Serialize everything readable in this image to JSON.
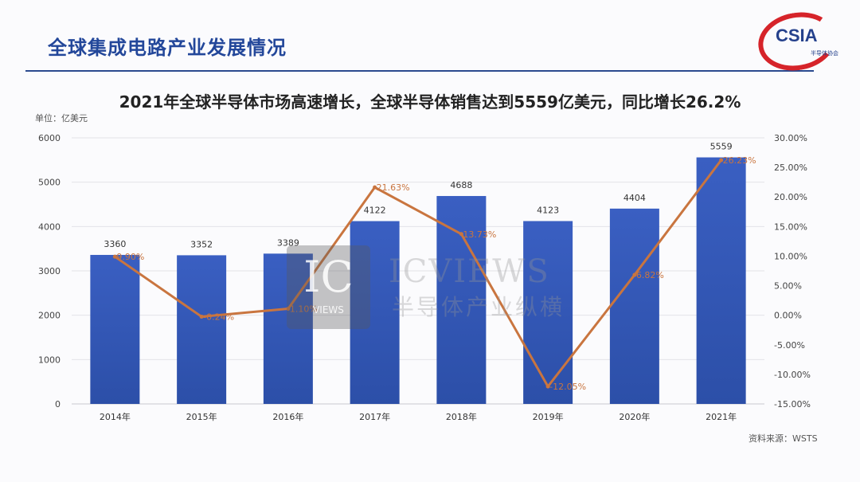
{
  "header": {
    "title": "全球集成电路产业发展情况"
  },
  "logo": {
    "text": "CSIA",
    "sub": "半导体协会"
  },
  "watermark": {
    "mark": "IC",
    "mark_sub": "VIEWS",
    "name": "ICVIEWS",
    "name_cn": "半导体产业纵横"
  },
  "source": "资料来源：WSTS",
  "colors": {
    "bar": "#3d63c4",
    "line": "#c9753f",
    "title": "#23479a"
  },
  "chart_data": {
    "type": "bar",
    "title": "2021年全球半导体市场高速增长，全球半导体销售达到5559亿美元，同比增长26.2%",
    "unit_label": "单位：亿美元",
    "categories": [
      "2014年",
      "2015年",
      "2016年",
      "2017年",
      "2018年",
      "2019年",
      "2020年",
      "2021年"
    ],
    "series": [
      {
        "values": [
          3360,
          3352,
          3389,
          4122,
          4688,
          4123,
          4404,
          5559
        ],
        "labels": [
          "3360",
          "3352",
          "3389",
          "4122",
          "4688",
          "4123",
          "4404",
          "5559"
        ]
      },
      {
        "values": [
          9.9,
          -0.24,
          1.1,
          21.63,
          13.73,
          -12.05,
          6.82,
          26.23
        ],
        "labels": [
          "9.90%",
          "-0.24%",
          "1.10%",
          "21.63%",
          "13.73%",
          "-12.05%",
          "6.82%",
          "26.23%"
        ]
      }
    ],
    "ylim": [
      0,
      6000
    ],
    "yticks": [
      "0",
      "1000",
      "2000",
      "3000",
      "4000",
      "5000",
      "6000"
    ],
    "y2lim": [
      -15,
      30
    ],
    "y2ticks": [
      "-15.00%",
      "-10.00%",
      "-5.00%",
      "0.00%",
      "5.00%",
      "10.00%",
      "15.00%",
      "20.00%",
      "25.00%",
      "30.00%"
    ],
    "grid": true
  }
}
